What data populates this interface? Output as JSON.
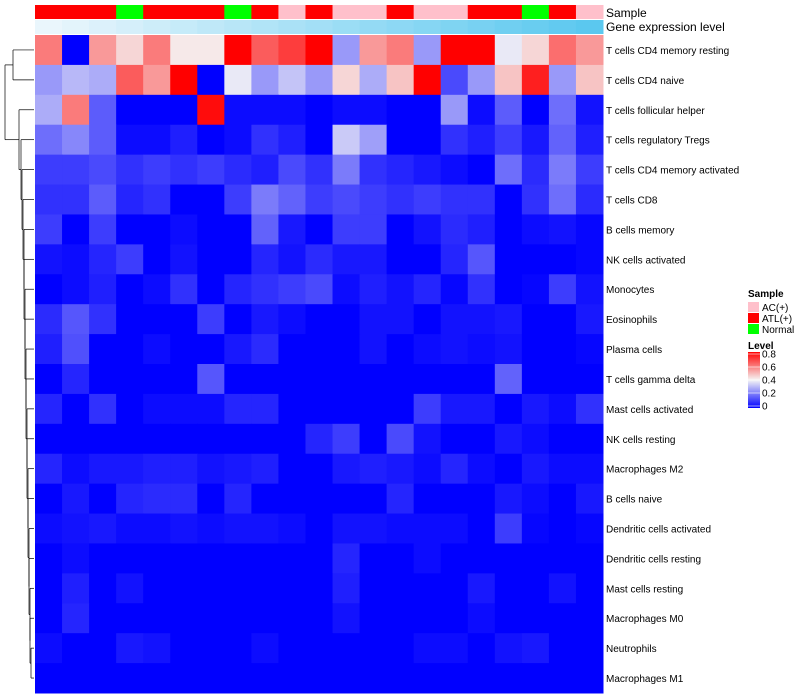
{
  "chart_data": {
    "type": "heatmap",
    "title": "",
    "annotations": {
      "sample_label": "Sample",
      "gene_label": "Gene expression level",
      "sample_groups": [
        "ATL(+)",
        "ATL(+)",
        "ATL(+)",
        "Normal",
        "ATL(+)",
        "ATL(+)",
        "ATL(+)",
        "Normal",
        "ATL(+)",
        "AC(+)",
        "ATL(+)",
        "AC(+)",
        "AC(+)",
        "ATL(+)",
        "AC(+)",
        "AC(+)",
        "ATL(+)",
        "ATL(+)",
        "Normal",
        "ATL(+)",
        "AC(+)"
      ],
      "gene_expression": [
        0.0,
        0.05,
        0.1,
        0.15,
        0.2,
        0.25,
        0.3,
        0.35,
        0.4,
        0.45,
        0.5,
        0.55,
        0.6,
        0.65,
        0.7,
        0.75,
        0.8,
        0.85,
        0.9,
        0.95,
        1.0
      ]
    },
    "rows": [
      "T cells CD4 memory resting",
      "T cells CD4 naive",
      "T cells follicular helper",
      "T cells regulatory  Tregs",
      "T cells CD4 memory activated",
      "T cells CD8",
      "B cells memory",
      "NK cells activated",
      "Monocytes",
      "Eosinophils",
      "Plasma cells",
      "T cells gamma delta",
      "Mast cells activated",
      "NK cells resting",
      "Macrophages M2",
      "B cells naive",
      "Dendritic cells activated",
      "Dendritic cells resting",
      "Mast cells resting",
      "Macrophages M0",
      "Neutrophils",
      "Macrophages M1"
    ],
    "values": [
      [
        0.6,
        0.0,
        0.55,
        0.45,
        0.6,
        0.42,
        0.42,
        0.8,
        0.65,
        0.7,
        0.8,
        0.25,
        0.55,
        0.6,
        0.25,
        0.8,
        0.8,
        0.38,
        0.45,
        0.62,
        0.55
      ],
      [
        0.25,
        0.3,
        0.28,
        0.65,
        0.55,
        0.8,
        0.0,
        0.38,
        0.25,
        0.32,
        0.25,
        0.45,
        0.28,
        0.48,
        0.8,
        0.12,
        0.25,
        0.48,
        0.75,
        0.25,
        0.48
      ],
      [
        0.28,
        0.6,
        0.15,
        0.0,
        0.0,
        0.0,
        0.78,
        0.02,
        0.02,
        0.02,
        0.0,
        0.02,
        0.02,
        0.0,
        0.0,
        0.25,
        0.02,
        0.15,
        0.0,
        0.18,
        0.03
      ],
      [
        0.18,
        0.22,
        0.15,
        0.02,
        0.02,
        0.05,
        0.0,
        0.02,
        0.08,
        0.05,
        0.0,
        0.33,
        0.26,
        0.0,
        0.0,
        0.08,
        0.05,
        0.1,
        0.04,
        0.16,
        0.05
      ],
      [
        0.1,
        0.1,
        0.12,
        0.08,
        0.1,
        0.08,
        0.1,
        0.07,
        0.05,
        0.12,
        0.08,
        0.2,
        0.08,
        0.06,
        0.04,
        0.02,
        0.0,
        0.18,
        0.07,
        0.2,
        0.1
      ],
      [
        0.08,
        0.08,
        0.15,
        0.06,
        0.08,
        0.0,
        0.0,
        0.1,
        0.2,
        0.16,
        0.1,
        0.12,
        0.1,
        0.08,
        0.1,
        0.08,
        0.08,
        0.0,
        0.08,
        0.18,
        0.07
      ],
      [
        0.1,
        0.0,
        0.1,
        0.0,
        0.0,
        0.02,
        0.0,
        0.0,
        0.16,
        0.04,
        0.0,
        0.1,
        0.1,
        0.0,
        0.03,
        0.07,
        0.05,
        0.0,
        0.02,
        0.03,
        0.01
      ],
      [
        0.03,
        0.02,
        0.06,
        0.1,
        0.0,
        0.03,
        0.0,
        0.0,
        0.06,
        0.03,
        0.07,
        0.04,
        0.04,
        0.0,
        0.0,
        0.06,
        0.14,
        0.0,
        0.0,
        0.0,
        0.01
      ],
      [
        0.0,
        0.02,
        0.05,
        0.0,
        0.02,
        0.08,
        0.0,
        0.06,
        0.08,
        0.1,
        0.12,
        0.02,
        0.05,
        0.03,
        0.06,
        0.01,
        0.08,
        0.0,
        0.01,
        0.1,
        0.03
      ],
      [
        0.07,
        0.14,
        0.08,
        0.0,
        0.0,
        0.0,
        0.1,
        0.0,
        0.04,
        0.02,
        0.0,
        0.0,
        0.03,
        0.03,
        0.0,
        0.03,
        0.03,
        0.04,
        0.0,
        0.0,
        0.04
      ],
      [
        0.05,
        0.13,
        0.0,
        0.0,
        0.02,
        0.0,
        0.0,
        0.04,
        0.07,
        0.0,
        0.0,
        0.0,
        0.03,
        0.0,
        0.02,
        0.03,
        0.02,
        0.03,
        0.0,
        0.0,
        0.01
      ],
      [
        0.0,
        0.06,
        0.0,
        0.0,
        0.0,
        0.0,
        0.14,
        0.0,
        0.0,
        0.0,
        0.0,
        0.0,
        0.0,
        0.0,
        0.0,
        0.0,
        0.0,
        0.16,
        0.0,
        0.0,
        0.0
      ],
      [
        0.06,
        0.0,
        0.08,
        0.0,
        0.02,
        0.02,
        0.02,
        0.06,
        0.06,
        0.0,
        0.0,
        0.0,
        0.0,
        0.0,
        0.1,
        0.04,
        0.04,
        0.0,
        0.04,
        0.02,
        0.08
      ],
      [
        0.0,
        0.0,
        0.0,
        0.0,
        0.0,
        0.0,
        0.0,
        0.0,
        0.0,
        0.0,
        0.06,
        0.1,
        0.0,
        0.12,
        0.03,
        0.0,
        0.0,
        0.04,
        0.02,
        0.0,
        0.0
      ],
      [
        0.06,
        0.02,
        0.04,
        0.04,
        0.05,
        0.05,
        0.03,
        0.04,
        0.05,
        0.0,
        0.0,
        0.04,
        0.05,
        0.04,
        0.02,
        0.06,
        0.02,
        0.0,
        0.04,
        0.02,
        0.02
      ],
      [
        0.0,
        0.04,
        0.0,
        0.06,
        0.07,
        0.07,
        0.0,
        0.06,
        0.0,
        0.0,
        0.0,
        0.0,
        0.0,
        0.06,
        0.0,
        0.0,
        0.0,
        0.04,
        0.02,
        0.0,
        0.04
      ],
      [
        0.02,
        0.03,
        0.04,
        0.02,
        0.02,
        0.03,
        0.02,
        0.03,
        0.03,
        0.02,
        0.0,
        0.03,
        0.03,
        0.02,
        0.02,
        0.02,
        0.0,
        0.1,
        0.01,
        0.0,
        0.01
      ],
      [
        0.0,
        0.02,
        0.0,
        0.0,
        0.0,
        0.0,
        0.0,
        0.0,
        0.0,
        0.0,
        0.0,
        0.06,
        0.0,
        0.0,
        0.02,
        0.0,
        0.0,
        0.0,
        0.0,
        0.0,
        0.0
      ],
      [
        0.0,
        0.05,
        0.0,
        0.03,
        0.0,
        0.0,
        0.0,
        0.0,
        0.0,
        0.0,
        0.0,
        0.05,
        0.0,
        0.0,
        0.0,
        0.0,
        0.04,
        0.0,
        0.0,
        0.03,
        0.0
      ],
      [
        0.0,
        0.06,
        0.0,
        0.0,
        0.0,
        0.0,
        0.0,
        0.0,
        0.0,
        0.0,
        0.0,
        0.03,
        0.0,
        0.0,
        0.0,
        0.0,
        0.02,
        0.0,
        0.0,
        0.0,
        0.0
      ],
      [
        0.02,
        0.0,
        0.0,
        0.04,
        0.03,
        0.0,
        0.0,
        0.0,
        0.02,
        0.0,
        0.0,
        0.0,
        0.0,
        0.0,
        0.02,
        0.02,
        0.0,
        0.03,
        0.04,
        0.0,
        0.0
      ],
      [
        0.0,
        0.0,
        0.0,
        0.0,
        0.0,
        0.0,
        0.0,
        0.0,
        0.0,
        0.0,
        0.0,
        0.0,
        0.0,
        0.0,
        0.0,
        0.0,
        0.0,
        0.0,
        0.0,
        0.0,
        0.0
      ]
    ],
    "color_scale": {
      "min": 0,
      "max": 0.8,
      "low": "#0000FF",
      "mid": "#F5F5F5",
      "high": "#FF0000",
      "mid_value": 0.4
    },
    "gene_scale": {
      "low": "#EAF6FC",
      "high": "#5BC8EF"
    },
    "legend": {
      "sample_title": "Sample",
      "sample_entries": [
        {
          "label": "AC(+)",
          "color": "#FFC0CB"
        },
        {
          "label": "ATL(+)",
          "color": "#FF0000"
        },
        {
          "label": "Normal",
          "color": "#00FF00"
        }
      ],
      "level_title": "Level",
      "level_ticks": [
        "0.8",
        "0.6",
        "0.4",
        "0.2",
        "0"
      ],
      "position": "right"
    },
    "dendrogram": "rows"
  }
}
